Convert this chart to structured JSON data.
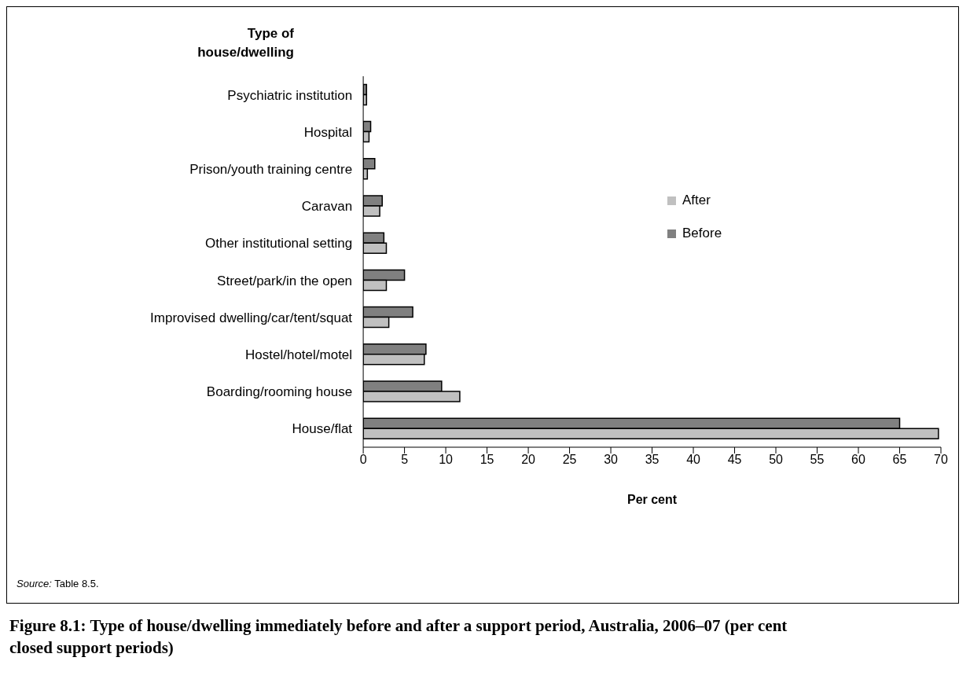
{
  "chart_data": {
    "type": "bar",
    "orientation": "horizontal",
    "title": "Figure 8.1: Type of house/dwelling immediately before and after a support period, Australia, 2006–07 (per cent closed support periods)",
    "xlabel": "Per cent",
    "ylabel": "Type of house/dwelling",
    "categories": [
      "Psychiatric institution",
      "Hospital",
      "Prison/youth training centre",
      "Caravan",
      "Other institutional setting",
      "Street/park/in the open",
      "Improvised dwelling/car/tent/squat",
      "Hostel/hotel/motel",
      "Boarding/rooming house",
      "House/flat"
    ],
    "series": [
      {
        "name": "Before",
        "color": "#808080",
        "values": [
          0.4,
          0.9,
          1.4,
          2.3,
          2.5,
          5.0,
          6.0,
          7.6,
          9.5,
          65.0
        ]
      },
      {
        "name": "After",
        "color": "#c0c0c0",
        "values": [
          0.4,
          0.7,
          0.5,
          2.0,
          2.8,
          2.8,
          3.1,
          7.4,
          11.7,
          69.7
        ]
      }
    ],
    "xlim": [
      0,
      70
    ],
    "xticks": [
      0,
      5,
      10,
      15,
      20,
      25,
      30,
      35,
      40,
      45,
      50,
      55,
      60,
      65,
      70
    ],
    "grid": false,
    "legend": "right",
    "annotations": [
      "Source: Table 8.5."
    ]
  }
}
